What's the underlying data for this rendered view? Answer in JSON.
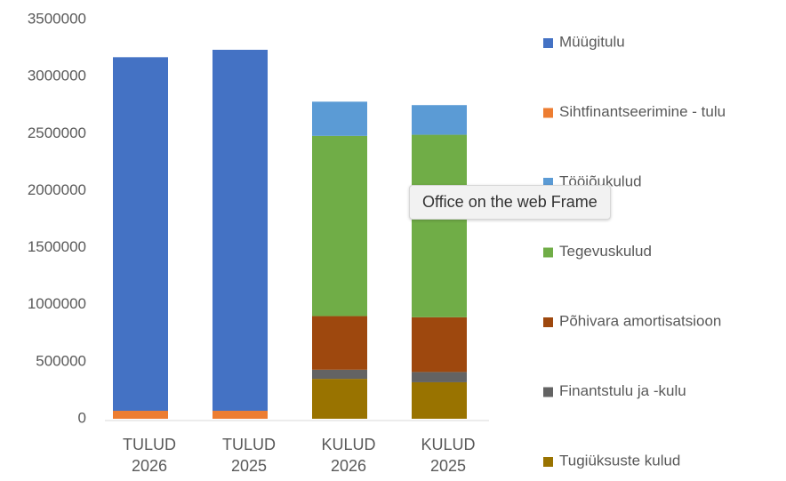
{
  "chart_data": {
    "type": "stacked_bar",
    "categories": [
      "TULUD 2026",
      "TULUD 2025",
      "KULUD 2026",
      "KULUD 2025"
    ],
    "series": [
      {
        "name": "Müügitulu",
        "color": "#4472c4",
        "values": [
          3100000,
          3165000,
          0,
          0
        ]
      },
      {
        "name": "Sihtfinantseerimine - tulu",
        "color": "#ed7d31",
        "values": [
          70000,
          70000,
          0,
          0
        ]
      },
      {
        "name": "Tööjõukulud",
        "color": "#5b9bd5",
        "values": [
          0,
          0,
          300000,
          260000
        ]
      },
      {
        "name": "Tegevuskulud",
        "color": "#70ad47",
        "values": [
          0,
          0,
          1580000,
          1600000
        ]
      },
      {
        "name": "Põhivara amortisatsioon",
        "color": "#9e480e",
        "values": [
          0,
          0,
          470000,
          480000
        ]
      },
      {
        "name": "Finantstulu ja -kulu",
        "color": "#636363",
        "values": [
          0,
          0,
          80000,
          90000
        ]
      },
      {
        "name": "Tugiüksuste kulud",
        "color": "#997300",
        "values": [
          0,
          0,
          350000,
          320000
        ]
      }
    ],
    "ylim": [
      0,
      3500000
    ],
    "yticks": [
      0,
      500000,
      1000000,
      1500000,
      2000000,
      2500000,
      3000000,
      3500000
    ],
    "grid": false,
    "legend": "right",
    "tooltip": "Office on the web Frame"
  }
}
